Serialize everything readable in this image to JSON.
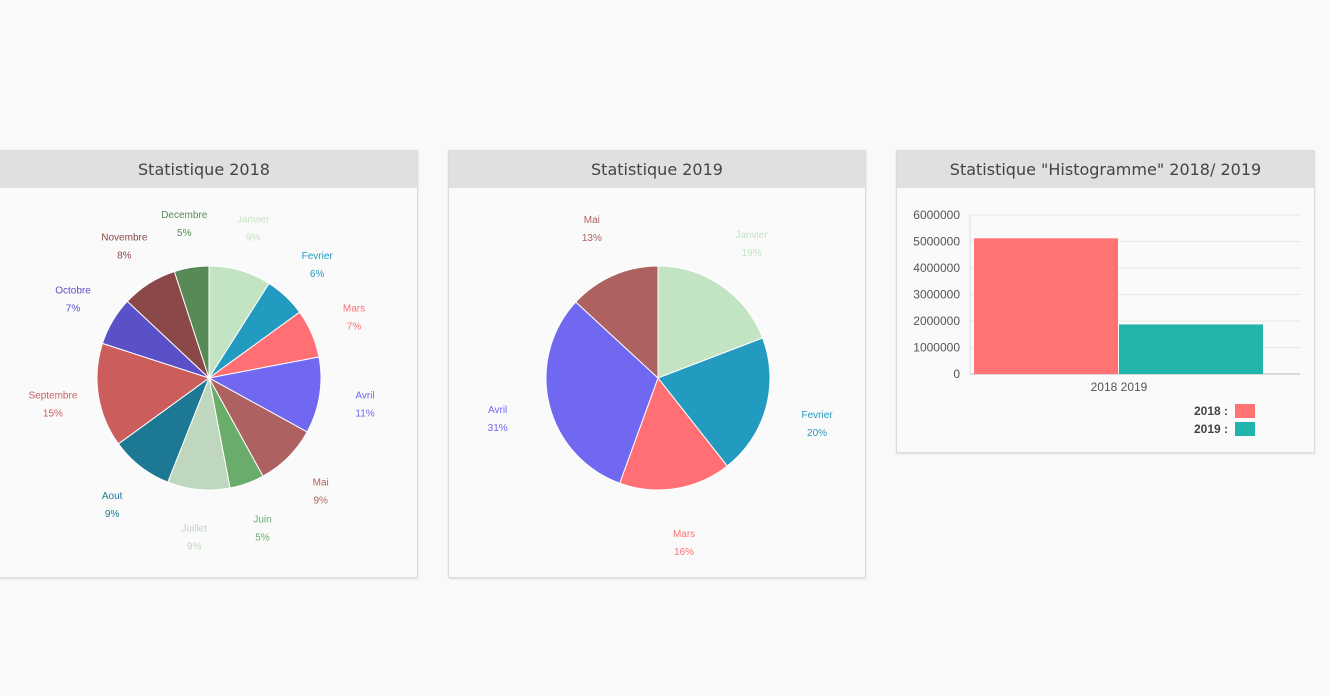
{
  "panels": [
    {
      "title": "Statistique 2018"
    },
    {
      "title": "Statistique 2019"
    },
    {
      "title": "Statistique \"Histogramme\" 2018/ 2019"
    }
  ],
  "chart_data": [
    {
      "type": "pie",
      "title": "Statistique 2018",
      "slices": [
        {
          "label": "Janvier",
          "value": 9,
          "pct": "9%",
          "color": "#c3e4c3"
        },
        {
          "label": "Fevrier",
          "value": 6,
          "pct": "6%",
          "color": "#239abf"
        },
        {
          "label": "Mars",
          "value": 7,
          "pct": "7%",
          "color": "#ff6f74"
        },
        {
          "label": "Avril",
          "value": 11,
          "pct": "11%",
          "color": "#7168f2"
        },
        {
          "label": "Mai",
          "value": 9,
          "pct": "9%",
          "color": "#ad6161"
        },
        {
          "label": "Juin",
          "value": 5,
          "pct": "5%",
          "color": "#6aac6a"
        },
        {
          "label": "Juillet",
          "value": 9,
          "pct": "9%",
          "color": "#bfd7bf"
        },
        {
          "label": "Aout",
          "value": 9,
          "pct": "9%",
          "color": "#1d7894"
        },
        {
          "label": "Septembre",
          "value": 15,
          "pct": "15%",
          "color": "#cb5d5d"
        },
        {
          "label": "Octobre",
          "value": 7,
          "pct": "7%",
          "color": "#5a50c8"
        },
        {
          "label": "Novembre",
          "value": 8,
          "pct": "8%",
          "color": "#8a4848"
        },
        {
          "label": "Decembre",
          "value": 5,
          "pct": "5%",
          "color": "#588a58"
        }
      ]
    },
    {
      "type": "pie",
      "title": "Statistique 2019",
      "slices": [
        {
          "label": "Janvier",
          "value": 19,
          "pct": "19%",
          "color": "#c3e4c3"
        },
        {
          "label": "Fevrier",
          "value": 20,
          "pct": "20%",
          "color": "#239abf"
        },
        {
          "label": "Mars",
          "value": 16,
          "pct": "16%",
          "color": "#ff6f74"
        },
        {
          "label": "Avril",
          "value": 31,
          "pct": "31%",
          "color": "#7168f2"
        },
        {
          "label": "Mai",
          "value": 13,
          "pct": "13%",
          "color": "#ad6161"
        }
      ]
    },
    {
      "type": "bar",
      "title": "Statistique \"Histogramme\" 2018/ 2019",
      "categories": [
        "2018 2019"
      ],
      "series": [
        {
          "name": "2018 :",
          "values": [
            5120000
          ],
          "color": "#ff7373"
        },
        {
          "name": "2019 :",
          "values": [
            1870000
          ],
          "color": "#20b4aa"
        }
      ],
      "ylim": [
        0,
        6000000
      ],
      "yticks": [
        0,
        1000000,
        2000000,
        3000000,
        4000000,
        5000000,
        6000000
      ],
      "grid": true,
      "legend": "bottom-right"
    }
  ]
}
